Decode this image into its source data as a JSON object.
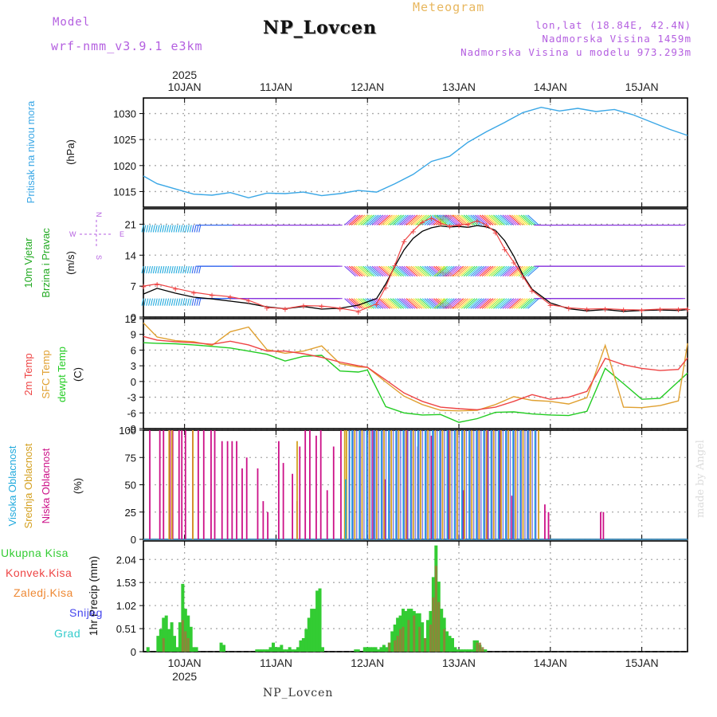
{
  "header": {
    "model_label": "Model",
    "model_value": "wrf-nmm_v3.9.1 e3km",
    "station_title": "NP_Lovcen",
    "subtitle": "Meteogram",
    "lonlat": "lon,lat (18.84E, 42.4N)",
    "elevation": "Nadmorska Visina 1459m",
    "model_elevation": "Nadmorska Visina u modelu 973.293m"
  },
  "footer": {
    "station": "NP_Lovcen",
    "credit": "made by Angel"
  },
  "colors": {
    "pressure": "#3aa7e6",
    "wind_label": "#22aa22",
    "temp2m": "#ee4444",
    "sfc_temp": "#e0a030",
    "dewpoint": "#22cc22",
    "cloud_high": "#22aadd",
    "cloud_mid": "#d4a020",
    "cloud_low": "#cc1188",
    "precip_total": "#33cc33",
    "precip_conv": "#ee4444",
    "precip_grid": "#ee8833",
    "snow": "#4444ee",
    "graupel": "#33cccc"
  },
  "chart_data": [
    {
      "type": "line",
      "id": "pressure",
      "ylabel": [
        "Pritisak na nivou mora",
        "(hPa)"
      ],
      "ylim": [
        1012,
        1033
      ],
      "yticks": [
        1015,
        1020,
        1025,
        1030
      ],
      "xlim": [
        9.55,
        15.5
      ],
      "top_axis": {
        "year": "2025",
        "ticks": [
          "10JAN",
          "11JAN",
          "12JAN",
          "13JAN",
          "14JAN",
          "15JAN"
        ]
      },
      "series": [
        {
          "name": "SLP",
          "x": [
            9.55,
            9.7,
            9.9,
            10.1,
            10.3,
            10.5,
            10.7,
            10.9,
            11.1,
            11.3,
            11.5,
            11.7,
            11.9,
            12.1,
            12.3,
            12.5,
            12.7,
            12.9,
            13.1,
            13.3,
            13.5,
            13.7,
            13.9,
            14.1,
            14.3,
            14.5,
            14.7,
            14.9,
            15.1,
            15.3,
            15.5
          ],
          "y": [
            1018.0,
            1016.5,
            1015.5,
            1014.5,
            1014.3,
            1014.8,
            1013.8,
            1014.7,
            1014.6,
            1014.9,
            1014.2,
            1014.6,
            1015.2,
            1014.9,
            1016.5,
            1018.3,
            1020.8,
            1021.8,
            1024.5,
            1026.5,
            1028.3,
            1030.2,
            1031.2,
            1030.5,
            1031.0,
            1030.4,
            1030.8,
            1029.8,
            1028.4,
            1027.0,
            1025.8
          ]
        }
      ]
    },
    {
      "type": "line",
      "id": "wind",
      "ylabel": [
        "10m Vjetar",
        "Brzina i Pravac",
        "(m/s)"
      ],
      "compass": {
        "n": "N",
        "s": "S",
        "e": "E",
        "w": "W"
      },
      "ylim": [
        0,
        24.5
      ],
      "yticks": [
        0,
        7,
        14,
        21
      ],
      "xlim": [
        9.55,
        15.5
      ],
      "series": [
        {
          "name": "Wind speed",
          "x": [
            9.55,
            9.7,
            9.9,
            10.1,
            10.3,
            10.5,
            10.7,
            10.9,
            11.1,
            11.3,
            11.5,
            11.7,
            11.9,
            12.1,
            12.2,
            12.3,
            12.4,
            12.5,
            12.6,
            12.7,
            12.8,
            12.9,
            13.0,
            13.1,
            13.2,
            13.3,
            13.4,
            13.5,
            13.6,
            13.7,
            13.8,
            14.0,
            14.2,
            14.4,
            14.6,
            14.8,
            15.0,
            15.2,
            15.4,
            15.5
          ],
          "y": [
            5.2,
            6.5,
            5.4,
            4.5,
            4.1,
            3.6,
            3.1,
            2.3,
            1.9,
            2.4,
            1.8,
            2.0,
            2.7,
            4.2,
            7.5,
            11.5,
            15.2,
            17.8,
            19.4,
            20.2,
            20.6,
            20.4,
            20.5,
            20.3,
            20.7,
            20.4,
            19.6,
            17.3,
            13.8,
            9.5,
            6.3,
            3.2,
            1.9,
            1.4,
            1.7,
            1.3,
            1.5,
            1.6,
            1.5,
            1.7
          ]
        },
        {
          "name": "Wind gust",
          "x": [
            9.55,
            9.7,
            9.9,
            10.1,
            10.3,
            10.5,
            10.7,
            10.9,
            11.1,
            11.3,
            11.5,
            11.7,
            11.9,
            12.1,
            12.2,
            12.3,
            12.4,
            12.5,
            12.6,
            12.7,
            12.8,
            12.9,
            13.0,
            13.1,
            13.2,
            13.3,
            13.4,
            13.5,
            13.6,
            13.7,
            13.8,
            14.0,
            14.2,
            14.4,
            14.6,
            14.8,
            15.0,
            15.2,
            15.4,
            15.5
          ],
          "y": [
            7.0,
            7.5,
            6.5,
            5.6,
            5.0,
            4.6,
            3.8,
            2.2,
            1.9,
            2.6,
            2.5,
            2.0,
            1.3,
            3.0,
            6.8,
            11.8,
            17.2,
            19.5,
            21.5,
            22.4,
            21.2,
            20.6,
            20.8,
            21.0,
            21.8,
            20.8,
            19.2,
            15.4,
            12.4,
            9.2,
            6.0,
            2.8,
            2.1,
            1.8,
            1.9,
            1.7,
            1.6,
            1.8,
            1.8,
            1.9
          ]
        }
      ]
    },
    {
      "type": "line",
      "id": "temperature",
      "ylabel": [
        "2m Temp",
        "SFC Temp",
        "dewpt Temp",
        "(C)"
      ],
      "ylim": [
        -9,
        12
      ],
      "yticks": [
        -9,
        -6,
        -3,
        0,
        3,
        6,
        9,
        12
      ],
      "xlim": [
        9.55,
        15.5
      ],
      "series": [
        {
          "name": "2m Temp",
          "x": [
            9.55,
            9.7,
            9.9,
            10.1,
            10.3,
            10.5,
            10.7,
            10.9,
            11.1,
            11.3,
            11.5,
            11.7,
            11.9,
            12.0,
            12.2,
            12.4,
            12.6,
            12.8,
            13.0,
            13.2,
            13.4,
            13.6,
            13.8,
            14.0,
            14.2,
            14.4,
            14.6,
            14.8,
            15.0,
            15.2,
            15.4,
            15.5
          ],
          "y": [
            8.6,
            7.9,
            7.6,
            7.4,
            7.1,
            7.7,
            7.0,
            5.8,
            5.8,
            5.3,
            4.6,
            3.7,
            3.0,
            2.7,
            0.3,
            -2.2,
            -3.8,
            -4.9,
            -5.2,
            -5.4,
            -4.9,
            -3.8,
            -2.5,
            -3.4,
            -3.0,
            -1.9,
            4.4,
            3.2,
            2.5,
            2.1,
            2.3,
            4.5
          ]
        },
        {
          "name": "SFC Temp",
          "x": [
            9.55,
            9.7,
            9.9,
            10.1,
            10.3,
            10.5,
            10.7,
            10.9,
            11.1,
            11.3,
            11.5,
            11.7,
            11.9,
            12.0,
            12.2,
            12.4,
            12.6,
            12.8,
            13.0,
            13.2,
            13.4,
            13.6,
            13.8,
            14.0,
            14.2,
            14.4,
            14.6,
            14.8,
            15.0,
            15.2,
            15.4,
            15.5
          ],
          "y": [
            11.2,
            8.5,
            7.8,
            7.6,
            6.9,
            9.5,
            10.4,
            6.1,
            5.4,
            5.8,
            6.8,
            3.4,
            2.8,
            2.7,
            -0.1,
            -2.8,
            -4.4,
            -5.5,
            -5.6,
            -5.5,
            -4.4,
            -2.9,
            -3.6,
            -3.8,
            -4.3,
            -3.1,
            6.9,
            -4.9,
            -5.0,
            -4.6,
            -3.7,
            7.3
          ]
        },
        {
          "name": "dewpt Temp",
          "x": [
            9.55,
            9.7,
            9.9,
            10.1,
            10.3,
            10.5,
            10.7,
            10.9,
            11.1,
            11.3,
            11.5,
            11.7,
            11.9,
            12.0,
            12.2,
            12.4,
            12.6,
            12.8,
            13.0,
            13.2,
            13.4,
            13.6,
            13.8,
            14.0,
            14.2,
            14.4,
            14.6,
            14.8,
            15.0,
            15.2,
            15.4,
            15.5
          ],
          "y": [
            7.4,
            7.3,
            7.2,
            7.0,
            6.7,
            6.4,
            5.8,
            5.2,
            3.9,
            4.8,
            5.0,
            2.0,
            1.8,
            2.2,
            -4.8,
            -6.0,
            -6.4,
            -6.3,
            -7.8,
            -7.1,
            -5.9,
            -5.8,
            -6.2,
            -6.4,
            -6.5,
            -5.7,
            2.5,
            -0.4,
            -3.4,
            -3.2,
            0.0,
            1.6
          ]
        }
      ]
    },
    {
      "type": "bar",
      "id": "clouds",
      "ylabel": [
        "Visoka Oblacnost",
        "Srednja Oblacnost",
        "Niska Oblacnost",
        "(%)"
      ],
      "ylim": [
        0,
        100
      ],
      "yticks": [
        0,
        25,
        50,
        75,
        100
      ],
      "xlim": [
        9.55,
        15.5
      ],
      "series": [
        {
          "name": "Niska Oblacnost",
          "x": [
            9.62,
            9.73,
            9.77,
            9.84,
            9.87,
            9.94,
            9.97,
            10.01,
            10.09,
            10.15,
            10.21,
            10.29,
            10.33,
            10.41,
            10.47,
            10.52,
            10.57,
            10.63,
            10.68,
            10.8,
            10.86,
            10.91,
            11.03,
            11.08,
            11.18,
            11.23,
            11.26,
            11.32,
            11.37,
            11.44,
            11.49,
            11.56,
            11.63,
            11.71,
            12.06,
            12.19,
            12.43,
            12.55,
            12.7,
            12.89,
            13.05,
            13.22,
            13.31,
            13.45,
            13.58,
            13.75,
            13.94,
            13.98,
            14.55,
            14.58
          ],
          "y": [
            100,
            100,
            100,
            100,
            100,
            100,
            100,
            100,
            100,
            100,
            100,
            100,
            100,
            90,
            90,
            90,
            90,
            65,
            75,
            65,
            35,
            25,
            90,
            70,
            60,
            35,
            85,
            100,
            100,
            95,
            100,
            45,
            85,
            100,
            100,
            55,
            100,
            85,
            95,
            100,
            45,
            100,
            100,
            100,
            40,
            100,
            32,
            25,
            25,
            25
          ]
        },
        {
          "name": "Srednja Oblacnost",
          "x": [
            9.82,
            9.85,
            10.08,
            11.22,
            11.74,
            11.76,
            11.79,
            11.85,
            11.93,
            12.01,
            12.09,
            12.17,
            12.25,
            12.33,
            12.41,
            12.49,
            12.57,
            12.65,
            12.73,
            12.81,
            12.89,
            12.97,
            13.05,
            13.13,
            13.21,
            13.29,
            13.37,
            13.45,
            13.53,
            13.61,
            13.69,
            13.77,
            13.86
          ],
          "y": [
            100,
            100,
            100,
            90,
            100,
            100,
            100,
            100,
            100,
            100,
            100,
            100,
            100,
            100,
            100,
            100,
            100,
            100,
            100,
            100,
            100,
            100,
            100,
            100,
            100,
            100,
            100,
            100,
            100,
            100,
            100,
            100,
            100
          ]
        },
        {
          "name": "Visoka Oblacnost",
          "x": [
            11.74,
            11.78,
            11.81,
            11.89,
            11.97,
            12.05,
            12.13,
            12.21,
            12.29,
            12.37,
            12.45,
            12.53,
            12.61,
            12.69,
            12.77,
            12.85,
            12.93,
            13.01,
            13.09,
            13.17,
            13.25,
            13.33,
            13.41,
            13.49,
            13.57,
            13.65,
            13.73,
            13.81
          ],
          "y": [
            55,
            100,
            100,
            100,
            100,
            100,
            100,
            100,
            100,
            100,
            100,
            100,
            100,
            100,
            100,
            100,
            100,
            100,
            100,
            100,
            100,
            100,
            100,
            100,
            100,
            100,
            100,
            100
          ]
        }
      ]
    },
    {
      "type": "bar",
      "id": "precip",
      "ylabel": [
        "1hr Precip (mm)"
      ],
      "legend": [
        "Ukupna Kisa",
        "Konvek.Kisa",
        "Zaledj.Kisa",
        "Snijeg",
        "Grad"
      ],
      "ylim": [
        0,
        2.45
      ],
      "yticks": [
        0,
        0.51,
        1.02,
        1.53,
        2.04
      ],
      "ytick_labels": [
        "0",
        "0.51",
        "1.02",
        "1.53",
        "2.04"
      ],
      "xlim": [
        9.55,
        15.5
      ],
      "bottom_axis": {
        "year": "2025",
        "ticks": [
          "10JAN",
          "11JAN",
          "12JAN",
          "13JAN",
          "14JAN",
          "15JAN"
        ]
      },
      "series": [
        {
          "name": "Ukupna Kisa",
          "x": [
            9.6,
            9.71,
            9.74,
            9.77,
            9.8,
            9.83,
            9.86,
            9.89,
            9.92,
            9.95,
            9.98,
            10.01,
            10.04,
            10.07,
            10.1,
            10.13,
            10.4,
            10.43,
            10.79,
            10.82,
            10.85,
            10.88,
            10.91,
            10.94,
            10.97,
            11.0,
            11.03,
            11.06,
            11.09,
            11.12,
            11.15,
            11.18,
            11.21,
            11.24,
            11.27,
            11.3,
            11.33,
            11.36,
            11.39,
            11.42,
            11.45,
            11.48,
            11.51,
            11.87,
            11.9,
            11.97,
            12.0,
            12.03,
            12.06,
            12.09,
            12.12,
            12.15,
            12.18,
            12.21,
            12.24,
            12.27,
            12.3,
            12.33,
            12.36,
            12.39,
            12.42,
            12.45,
            12.48,
            12.51,
            12.54,
            12.57,
            12.6,
            12.63,
            12.66,
            12.69,
            12.72,
            12.75,
            12.78,
            12.81,
            12.84,
            12.87,
            12.9,
            12.93,
            12.96,
            12.99,
            13.02,
            13.05,
            13.08,
            13.11,
            13.14,
            13.17,
            13.2,
            13.23,
            13.26,
            13.29
          ],
          "y": [
            0.1,
            0.35,
            0.5,
            0.75,
            0.8,
            0.5,
            0.65,
            0.35,
            0.1,
            0.65,
            1.5,
            0.95,
            0.8,
            0.55,
            0.1,
            0.1,
            0.2,
            0.15,
            0.05,
            0.05,
            0.05,
            0.05,
            0.05,
            0.1,
            0.2,
            0.1,
            0.1,
            0.15,
            0.05,
            0.05,
            0.1,
            0.05,
            0.05,
            0.1,
            0.25,
            0.3,
            0.5,
            0.75,
            0.95,
            0.95,
            1.35,
            1.4,
            0.1,
            0.05,
            0.05,
            0.1,
            0.1,
            0.1,
            0.1,
            0.1,
            0.05,
            0.1,
            0.15,
            0.1,
            0.2,
            0.45,
            0.6,
            0.75,
            0.8,
            0.95,
            0.9,
            0.95,
            0.95,
            0.9,
            0.85,
            0.85,
            0.65,
            0.3,
            0.7,
            0.9,
            1.65,
            2.35,
            1.55,
            0.95,
            0.75,
            0.45,
            0.35,
            0.3,
            0.1,
            0.05,
            0.05,
            0.05,
            0.05,
            0.05,
            0.05,
            0.25,
            0.25,
            0.15,
            0.05,
            0.05
          ]
        },
        {
          "name": "Konvek.Kisa",
          "x": [
            9.77,
            9.98,
            10.01,
            10.04,
            12.24,
            12.3,
            12.33,
            12.36,
            12.39,
            12.45,
            12.51,
            12.57,
            12.63,
            12.69,
            12.72,
            12.75,
            12.78,
            12.84,
            13.2,
            13.23,
            13.26
          ],
          "y": [
            0.3,
            0.7,
            0.45,
            0.3,
            0.2,
            0.25,
            0.35,
            0.5,
            0.55,
            0.7,
            0.8,
            0.55,
            0.3,
            0.6,
            1.2,
            1.9,
            1.1,
            0.5,
            0.2,
            0.2,
            0.1
          ]
        }
      ]
    }
  ]
}
